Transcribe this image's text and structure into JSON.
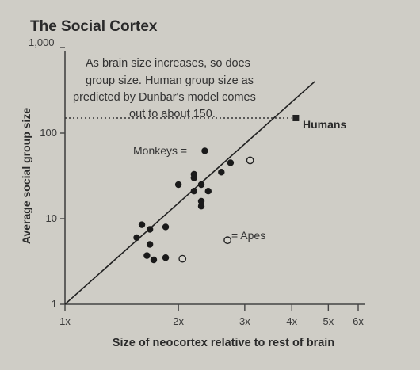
{
  "chart_data": {
    "type": "scatter",
    "title": "The Social Cortex",
    "xlabel": "Size of neocortex relative to rest of brain",
    "ylabel": "Average social group size",
    "x_scale": "log",
    "y_scale": "log",
    "xlim": [
      1,
      6
    ],
    "ylim": [
      1,
      1000
    ],
    "x_ticks": [
      {
        "value": 1,
        "label": "1x"
      },
      {
        "value": 2,
        "label": "2x"
      },
      {
        "value": 3,
        "label": "3x"
      },
      {
        "value": 4,
        "label": "4x"
      },
      {
        "value": 5,
        "label": "5x"
      },
      {
        "value": 6,
        "label": "6x"
      }
    ],
    "y_ticks": [
      {
        "value": 1,
        "label": "1"
      },
      {
        "value": 10,
        "label": "10"
      },
      {
        "value": 100,
        "label": "100"
      },
      {
        "value": 1000,
        "label": "1,000"
      }
    ],
    "annotation": [
      "As brain size increases, so does",
      "group size. Human group size as",
      "predicted by Dunbar's model comes",
      "out to about 150."
    ],
    "legend": {
      "monkeys": "Monkeys =",
      "apes": "= Apes"
    },
    "humans": {
      "label": "Humans",
      "x": 4.1,
      "y": 150
    },
    "reference_line": {
      "value": 150
    },
    "trend_line": [
      {
        "x": 1,
        "y": 1
      },
      {
        "x": 4.6,
        "y": 400
      }
    ],
    "series": [
      {
        "name": "Monkeys",
        "marker": "filled-circle",
        "points": [
          {
            "x": 1.55,
            "y": 6
          },
          {
            "x": 1.6,
            "y": 8.5
          },
          {
            "x": 1.68,
            "y": 7.5
          },
          {
            "x": 1.68,
            "y": 5
          },
          {
            "x": 1.65,
            "y": 3.7
          },
          {
            "x": 1.72,
            "y": 3.3
          },
          {
            "x": 1.85,
            "y": 3.5
          },
          {
            "x": 1.85,
            "y": 8
          },
          {
            "x": 2.0,
            "y": 25
          },
          {
            "x": 2.2,
            "y": 30
          },
          {
            "x": 2.2,
            "y": 33
          },
          {
            "x": 2.2,
            "y": 21
          },
          {
            "x": 2.3,
            "y": 25
          },
          {
            "x": 2.3,
            "y": 16
          },
          {
            "x": 2.3,
            "y": 14
          },
          {
            "x": 2.4,
            "y": 21
          },
          {
            "x": 2.6,
            "y": 35
          },
          {
            "x": 2.75,
            "y": 45
          }
        ]
      },
      {
        "name": "Apes",
        "marker": "open-circle",
        "points": [
          {
            "x": 2.05,
            "y": 3.4
          },
          {
            "x": 3.1,
            "y": 48
          }
        ]
      }
    ],
    "legend_marker_monkeys": {
      "x": 2.35,
      "y": 62
    },
    "legend_marker_apes": {
      "x": 2.7,
      "y": 5.6
    }
  }
}
